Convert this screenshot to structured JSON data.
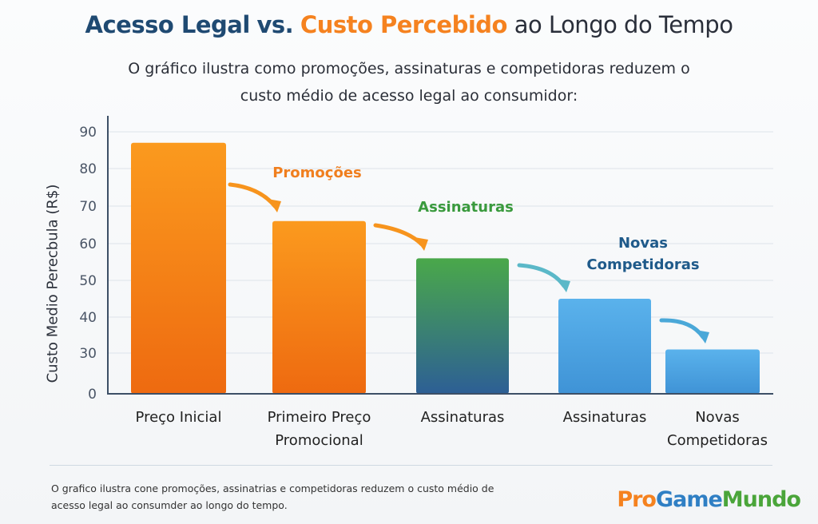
{
  "title": {
    "part1": "Acesso Legal",
    "part2": "vs.",
    "part3": "Custo Percebido",
    "part4": "ao Longo do Tempo"
  },
  "subtitle": [
    "O gráfico ilustra como promoções, assinaturas e competidoras reduzem o",
    "custo médio de acesso legal ao consumidor:"
  ],
  "footnote": [
    "O grafico ilustra cone promoções, assinatrias e competidoras reduzem o custo médio de",
    "acesso legal ao consumder ao longo do tempo."
  ],
  "logo": {
    "part1": "Pro",
    "part2": "Game",
    "part3": "Mundo"
  },
  "colors": {
    "title_blue": "#1f4a72",
    "orange": "#f5821f",
    "green": "#3a9a3d",
    "blue": "#1f5a8a",
    "light_blue": "#4aa3e0"
  },
  "chart_data": {
    "type": "bar",
    "title": "Acesso Legal vs. Custo Percebido ao Longo do Tempo",
    "ylabel": "Custo Medio Perecbula (R$)",
    "xlabel": "",
    "y_ticks": [
      0,
      30,
      40,
      50,
      60,
      70,
      80,
      90
    ],
    "ylim": [
      0,
      90
    ],
    "grid": true,
    "categories": [
      "Preço Inicial",
      "Primeiro Preço Promocional",
      "Assinaturas",
      "Assinaturas",
      "Novas Competidoras"
    ],
    "category_lines": [
      [
        "Preço Inicial"
      ],
      [
        "Primeiro Preço",
        "Promocional"
      ],
      [
        "Assinaturas"
      ],
      [
        "Assinaturas"
      ],
      [
        "Novas",
        "Competidoras"
      ]
    ],
    "values": [
      87,
      66,
      56,
      45,
      31
    ],
    "bar_colors": [
      [
        "#fb9a1e",
        "#ee6a10"
      ],
      [
        "#fb9a1e",
        "#ee6a10"
      ],
      [
        "#4aa84a",
        "#2d5f95"
      ],
      [
        "#5ab2ec",
        "#3f93d6"
      ],
      [
        "#5ab2ec",
        "#3f93d6"
      ]
    ],
    "annotations": [
      {
        "text": [
          "Promoções"
        ],
        "color": "#f07f1e"
      },
      {
        "text": [
          "Assinaturas"
        ],
        "color": "#3a9a3d"
      },
      {
        "text": [
          "Novas",
          "Competidoras"
        ],
        "color": "#1f5a8a"
      }
    ]
  }
}
